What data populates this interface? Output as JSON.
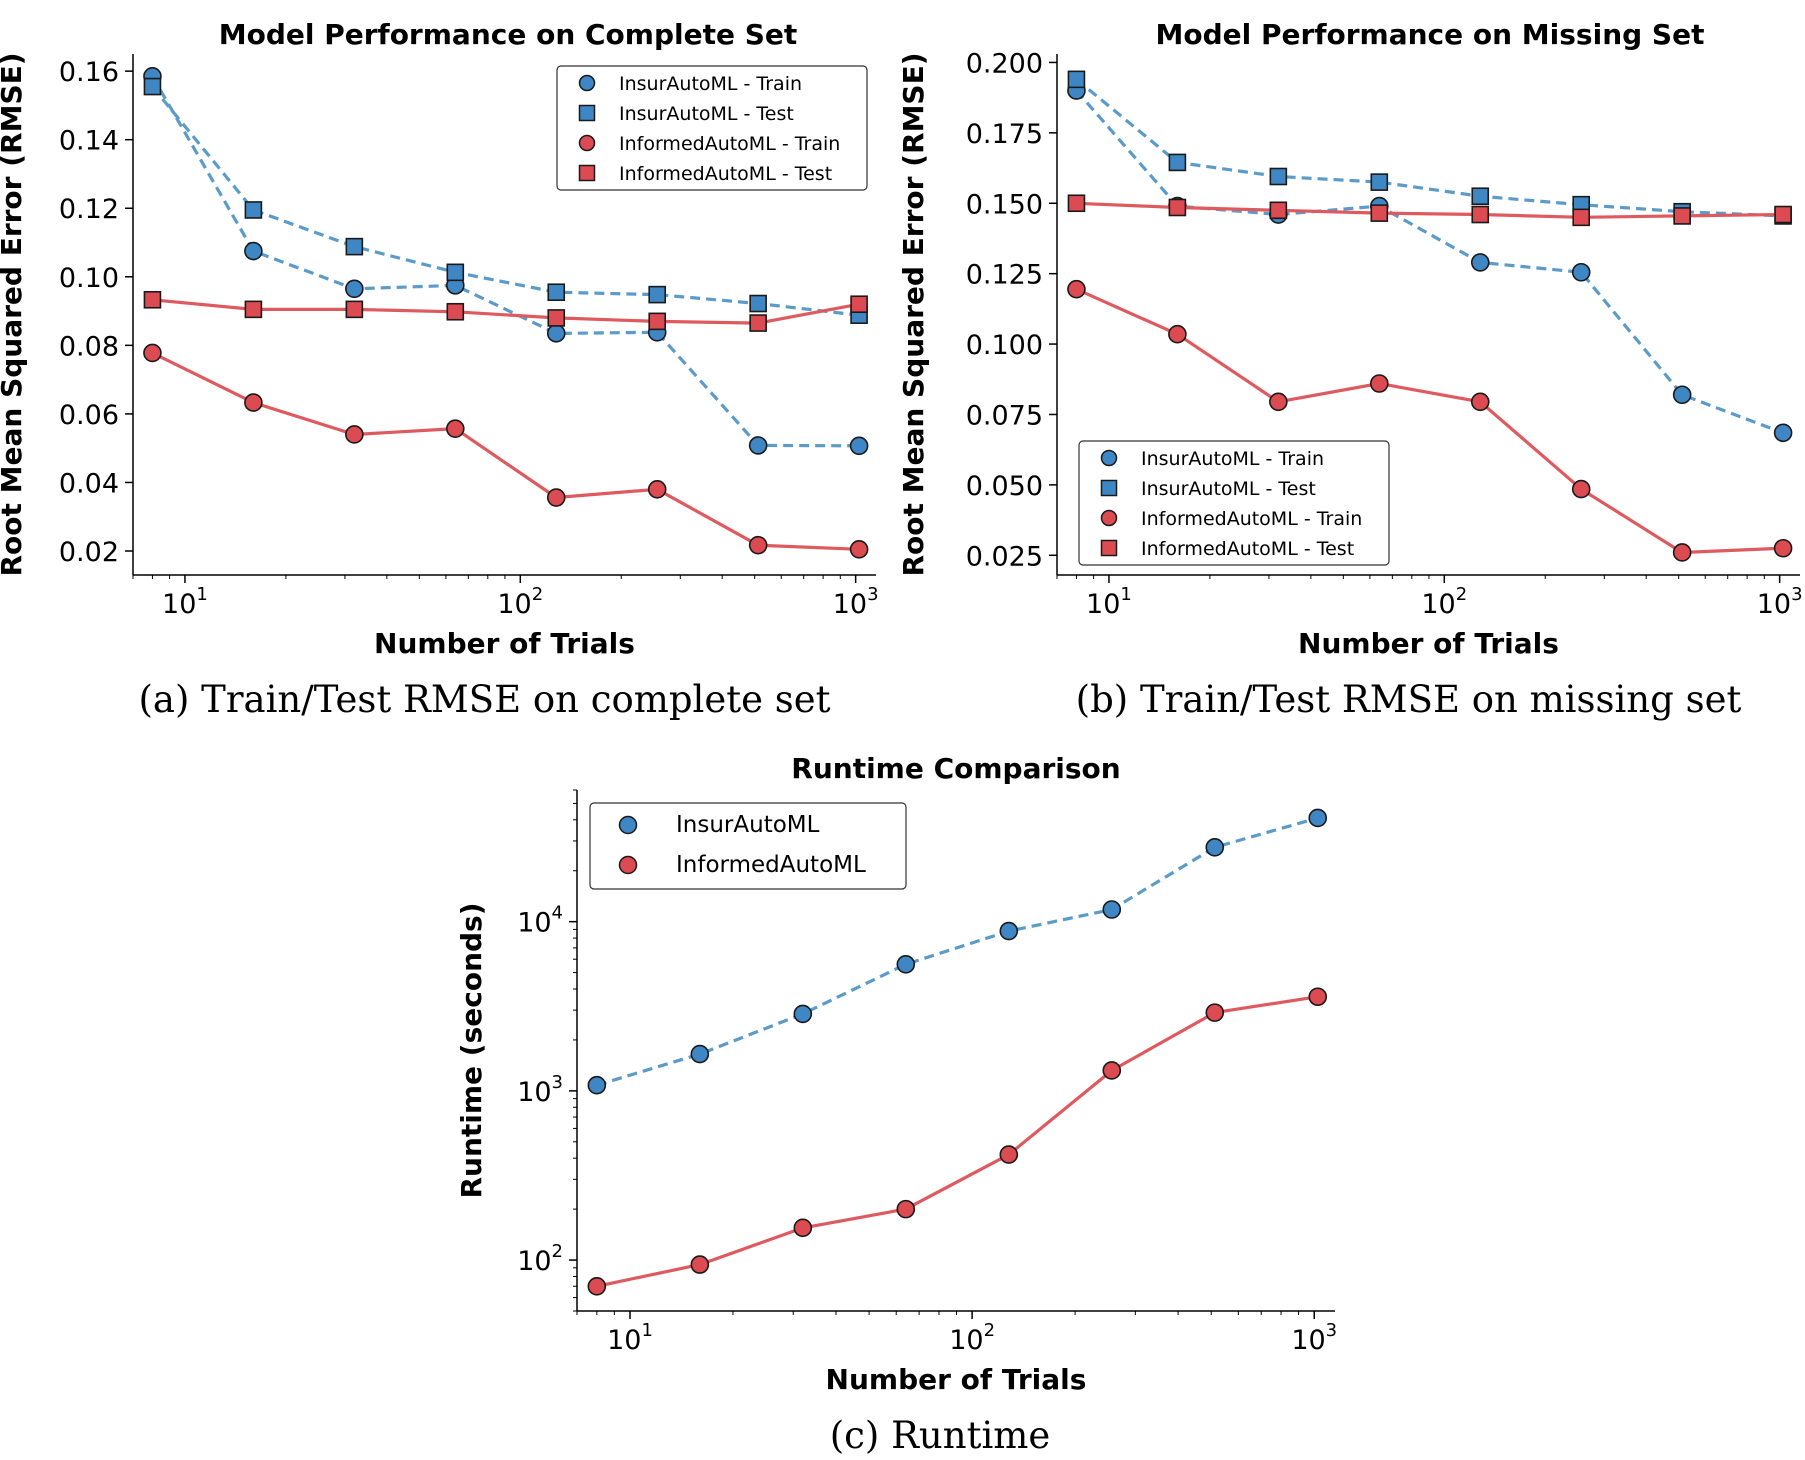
{
  "colors": {
    "blue": "#5b9bc9",
    "blue_marker": "#3f86c4",
    "red": "#de5a5f",
    "red_marker": "#dc4b51",
    "edge": "#1a1a1a"
  },
  "chart_data": [
    {
      "id": "a",
      "type": "line",
      "title": "Model Performance on Complete Set",
      "xlabel": "Number of Trials",
      "ylabel": "Root Mean Squared Error (RMSE)",
      "caption": "(a) Train/Test RMSE on complete set",
      "xscale": "log",
      "xlim": [
        7,
        1150
      ],
      "ylim": [
        0.013,
        0.165
      ],
      "xticks": [
        {
          "value": 10,
          "base": "10",
          "exp": "1"
        },
        {
          "value": 100,
          "base": "10",
          "exp": "2"
        },
        {
          "value": 1000,
          "base": "10",
          "exp": "3"
        }
      ],
      "yticks": [
        {
          "value": 0.02,
          "label": "0.02"
        },
        {
          "value": 0.04,
          "label": "0.04"
        },
        {
          "value": 0.06,
          "label": "0.06"
        },
        {
          "value": 0.08,
          "label": "0.08"
        },
        {
          "value": 0.1,
          "label": "0.10"
        },
        {
          "value": 0.12,
          "label": "0.12"
        },
        {
          "value": 0.14,
          "label": "0.14"
        },
        {
          "value": 0.16,
          "label": "0.16"
        }
      ],
      "legend_position": "top-right",
      "x": [
        8,
        16,
        32,
        64,
        128,
        256,
        512,
        1024
      ],
      "series": [
        {
          "name": "InsurAutoML - Train",
          "color": "blue",
          "marker": "circle",
          "dash": true,
          "values": [
            0.1585,
            0.1075,
            0.0965,
            0.0975,
            0.0835,
            0.0838,
            0.0508,
            0.0507
          ]
        },
        {
          "name": "InsurAutoML - Test",
          "color": "blue",
          "marker": "square",
          "dash": true,
          "values": [
            0.1555,
            0.1195,
            0.1088,
            0.1013,
            0.0955,
            0.0948,
            0.0922,
            0.0888
          ]
        },
        {
          "name": "InformedAutoML - Train",
          "color": "red",
          "marker": "circle",
          "dash": false,
          "values": [
            0.0778,
            0.0633,
            0.054,
            0.0557,
            0.0356,
            0.038,
            0.0217,
            0.0205
          ]
        },
        {
          "name": "InformedAutoML - Test",
          "color": "red",
          "marker": "square",
          "dash": false,
          "values": [
            0.0933,
            0.0905,
            0.0905,
            0.0898,
            0.088,
            0.087,
            0.0865,
            0.092
          ]
        }
      ]
    },
    {
      "id": "b",
      "type": "line",
      "title": "Model Performance on Missing Set",
      "xlabel": "Number of Trials",
      "ylabel": "Root Mean Squared Error (RMSE)",
      "caption": "(b) Train/Test RMSE on missing set",
      "xscale": "log",
      "xlim": [
        7,
        1150
      ],
      "ylim": [
        0.018,
        0.203
      ],
      "xticks": [
        {
          "value": 10,
          "base": "10",
          "exp": "1"
        },
        {
          "value": 100,
          "base": "10",
          "exp": "2"
        },
        {
          "value": 1000,
          "base": "10",
          "exp": "3"
        }
      ],
      "yticks": [
        {
          "value": 0.025,
          "label": "0.025"
        },
        {
          "value": 0.05,
          "label": "0.050"
        },
        {
          "value": 0.075,
          "label": "0.075"
        },
        {
          "value": 0.1,
          "label": "0.100"
        },
        {
          "value": 0.125,
          "label": "0.125"
        },
        {
          "value": 0.15,
          "label": "0.150"
        },
        {
          "value": 0.175,
          "label": "0.175"
        },
        {
          "value": 0.2,
          "label": "0.200"
        }
      ],
      "legend_position": "lower-left",
      "x": [
        8,
        16,
        32,
        64,
        128,
        256,
        512,
        1024
      ],
      "series": [
        {
          "name": "InsurAutoML - Train",
          "color": "blue",
          "marker": "circle",
          "dash": true,
          "values": [
            0.19,
            0.149,
            0.146,
            0.149,
            0.129,
            0.1255,
            0.082,
            0.0685
          ]
        },
        {
          "name": "InsurAutoML - Test",
          "color": "blue",
          "marker": "square",
          "dash": true,
          "values": [
            0.194,
            0.1645,
            0.1595,
            0.1575,
            0.1525,
            0.1495,
            0.147,
            0.1455
          ]
        },
        {
          "name": "InformedAutoML - Train",
          "color": "red",
          "marker": "circle",
          "dash": false,
          "values": [
            0.1195,
            0.1035,
            0.0795,
            0.086,
            0.0795,
            0.0485,
            0.026,
            0.0275
          ]
        },
        {
          "name": "InformedAutoML - Test",
          "color": "red",
          "marker": "square",
          "dash": false,
          "values": [
            0.15,
            0.1485,
            0.1475,
            0.1465,
            0.146,
            0.145,
            0.1455,
            0.146
          ]
        }
      ]
    },
    {
      "id": "c",
      "type": "line",
      "title": "Runtime Comparison",
      "xlabel": "Number of Trials",
      "ylabel": "Runtime (seconds)",
      "caption": "(c) Runtime",
      "xscale": "log",
      "yscale": "log",
      "xlim": [
        7,
        1150
      ],
      "ylim": [
        50,
        60000
      ],
      "xticks": [
        {
          "value": 10,
          "base": "10",
          "exp": "1"
        },
        {
          "value": 100,
          "base": "10",
          "exp": "2"
        },
        {
          "value": 1000,
          "base": "10",
          "exp": "3"
        }
      ],
      "yticks": [
        {
          "value": 100,
          "base": "10",
          "exp": "2"
        },
        {
          "value": 1000,
          "base": "10",
          "exp": "3"
        },
        {
          "value": 10000,
          "base": "10",
          "exp": "4"
        }
      ],
      "legend_position": "top-left",
      "x": [
        8,
        16,
        32,
        64,
        128,
        256,
        512,
        1024
      ],
      "series": [
        {
          "name": "InsurAutoML",
          "color": "blue",
          "marker": "circle",
          "dash": true,
          "values": [
            1080,
            1650,
            2850,
            5600,
            8800,
            11800,
            27500,
            41000
          ]
        },
        {
          "name": "InformedAutoML",
          "color": "red",
          "marker": "circle",
          "dash": false,
          "values": [
            70,
            94,
            155,
            200,
            420,
            1320,
            2900,
            3600
          ]
        }
      ]
    }
  ]
}
